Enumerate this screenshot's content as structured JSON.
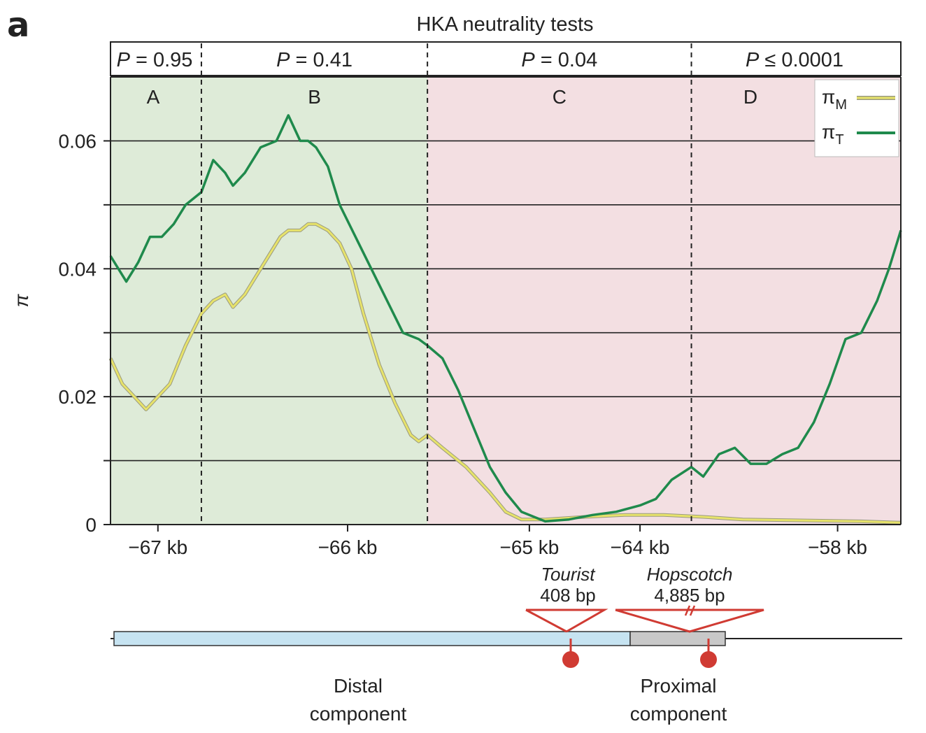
{
  "panel_label": "a",
  "chart_data": {
    "type": "line",
    "title": "HKA neutrality tests",
    "ylabel": "π",
    "xlabel": "",
    "ylim": [
      0,
      0.07
    ],
    "y_ticks": [
      0,
      0.02,
      0.04,
      0.06
    ],
    "y_tick_labels": [
      "0",
      "0.02",
      "0.04",
      "0.06"
    ],
    "y_grid": [
      0.01,
      0.02,
      0.03,
      0.04,
      0.05,
      0.06
    ],
    "x_tick_labels": [
      "−67 kb",
      "−66 kb",
      "−65 kb",
      "−64 kb",
      "−58 kb"
    ],
    "x_tick_positions": [
      0.06,
      0.3,
      0.53,
      0.67,
      0.92
    ],
    "x_range": [
      0,
      1
    ],
    "x_note": "x values are relative positions along the non-linear kb axis (0–1)",
    "regions": [
      {
        "label": "A",
        "p_prefix": "P",
        "p_rel": "= 0.95",
        "from": 0.0,
        "to": 0.115,
        "color": "#deebd8"
      },
      {
        "label": "B",
        "p_prefix": "P",
        "p_rel": "= 0.41",
        "from": 0.115,
        "to": 0.401,
        "color": "#deebd8"
      },
      {
        "label": "C",
        "p_prefix": "P",
        "p_rel": "= 0.04",
        "from": 0.401,
        "to": 0.735,
        "color": "#f3dfe2"
      },
      {
        "label": "D",
        "p_prefix": "P",
        "p_rel": "≤ 0.0001",
        "from": 0.735,
        "to": 1.0,
        "color": "#f3dfe2"
      }
    ],
    "series": [
      {
        "name_base": "π",
        "name_sub": "T",
        "color": "#1f8a4c",
        "x": [
          0.0,
          0.02,
          0.035,
          0.05,
          0.065,
          0.08,
          0.095,
          0.115,
          0.13,
          0.145,
          0.155,
          0.17,
          0.19,
          0.21,
          0.225,
          0.24,
          0.25,
          0.26,
          0.275,
          0.29,
          0.31,
          0.33,
          0.35,
          0.37,
          0.39,
          0.401,
          0.42,
          0.44,
          0.46,
          0.48,
          0.5,
          0.52,
          0.54,
          0.55,
          0.58,
          0.61,
          0.64,
          0.67,
          0.69,
          0.71,
          0.735,
          0.75,
          0.77,
          0.79,
          0.81,
          0.83,
          0.85,
          0.87,
          0.89,
          0.91,
          0.93,
          0.95,
          0.97,
          0.985,
          1.0
        ],
        "values": [
          0.042,
          0.038,
          0.041,
          0.045,
          0.045,
          0.047,
          0.05,
          0.052,
          0.057,
          0.055,
          0.053,
          0.055,
          0.059,
          0.06,
          0.064,
          0.06,
          0.06,
          0.059,
          0.056,
          0.05,
          0.045,
          0.04,
          0.035,
          0.03,
          0.029,
          0.028,
          0.026,
          0.021,
          0.015,
          0.009,
          0.005,
          0.002,
          0.001,
          0.0005,
          0.0008,
          0.0015,
          0.002,
          0.003,
          0.004,
          0.007,
          0.009,
          0.0075,
          0.011,
          0.012,
          0.0095,
          0.0095,
          0.011,
          0.012,
          0.016,
          0.022,
          0.029,
          0.03,
          0.035,
          0.04,
          0.046
        ]
      },
      {
        "name_base": "π",
        "name_sub": "M",
        "color": "#e7e36a",
        "x": [
          0.0,
          0.015,
          0.03,
          0.045,
          0.06,
          0.075,
          0.095,
          0.115,
          0.13,
          0.145,
          0.155,
          0.17,
          0.18,
          0.2,
          0.215,
          0.225,
          0.24,
          0.25,
          0.26,
          0.275,
          0.29,
          0.305,
          0.32,
          0.34,
          0.36,
          0.38,
          0.39,
          0.401,
          0.42,
          0.45,
          0.48,
          0.5,
          0.52,
          0.55,
          0.6,
          0.65,
          0.7,
          0.75,
          0.8,
          0.85,
          0.9,
          0.95,
          1.0
        ],
        "values": [
          0.026,
          0.022,
          0.02,
          0.018,
          0.02,
          0.022,
          0.028,
          0.033,
          0.035,
          0.036,
          0.034,
          0.036,
          0.038,
          0.042,
          0.045,
          0.046,
          0.046,
          0.047,
          0.047,
          0.046,
          0.044,
          0.04,
          0.033,
          0.025,
          0.019,
          0.014,
          0.013,
          0.014,
          0.012,
          0.009,
          0.005,
          0.002,
          0.0008,
          0.0008,
          0.0012,
          0.0015,
          0.0015,
          0.0012,
          0.0008,
          0.0007,
          0.0006,
          0.0005,
          0.0003
        ]
      }
    ]
  },
  "gene_map": {
    "insertions": [
      {
        "name": "Tourist",
        "size": "408 bp"
      },
      {
        "name": "Hopscotch",
        "size": "4,885 bp"
      }
    ],
    "components": [
      {
        "line1": "Distal",
        "line2": "component",
        "color": "#c6e3f1"
      },
      {
        "line1": "Proximal",
        "line2": "component",
        "color": "#c8c8c8"
      }
    ],
    "insertion_color": "#d03b33"
  }
}
